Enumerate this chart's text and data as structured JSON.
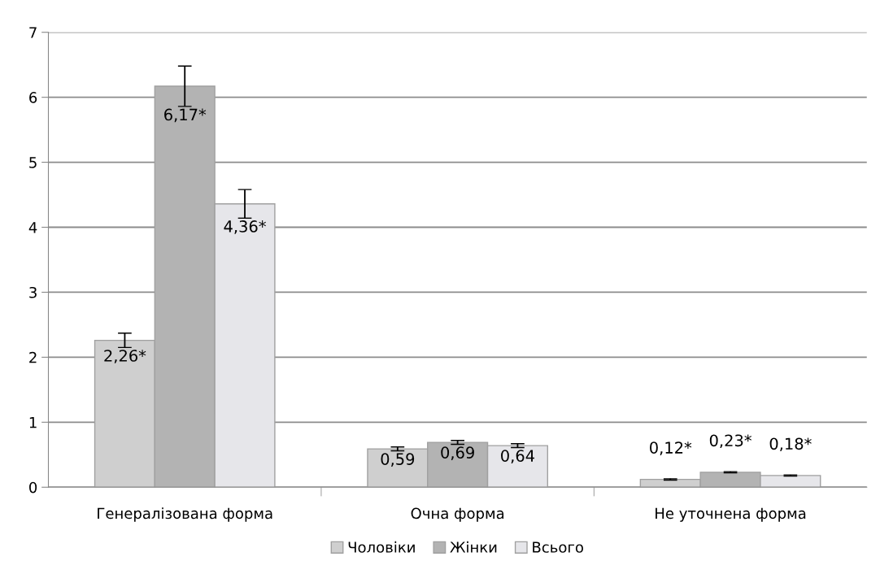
{
  "chart_data": {
    "type": "bar",
    "categories": [
      "Генералізована форма",
      "Очна форма",
      "Не уточнена форма"
    ],
    "series": [
      {
        "name": "Чоловіки",
        "color": "#cfcfcf",
        "values": [
          2.26,
          0.59,
          0.12
        ],
        "errors": [
          0.11,
          0.03,
          0.01
        ],
        "value_labels": [
          "2,26*",
          "0,59",
          "0,12*"
        ]
      },
      {
        "name": "Жінки",
        "color": "#b3b3b3",
        "values": [
          6.17,
          0.69,
          0.23
        ],
        "errors": [
          0.31,
          0.03,
          0.01
        ],
        "value_labels": [
          "6,17*",
          "0,69",
          "0,23*"
        ]
      },
      {
        "name": "Всього",
        "color": "#e6e6ea",
        "values": [
          4.36,
          0.64,
          0.18
        ],
        "errors": [
          0.22,
          0.03,
          0.01
        ],
        "value_labels": [
          "4,36*",
          "0,64",
          "0,18*"
        ]
      }
    ],
    "ylim": [
      0,
      7
    ],
    "yticks": [
      0,
      1,
      2,
      3,
      4,
      5,
      6,
      7
    ],
    "grid": "y",
    "legend": "bottom"
  }
}
